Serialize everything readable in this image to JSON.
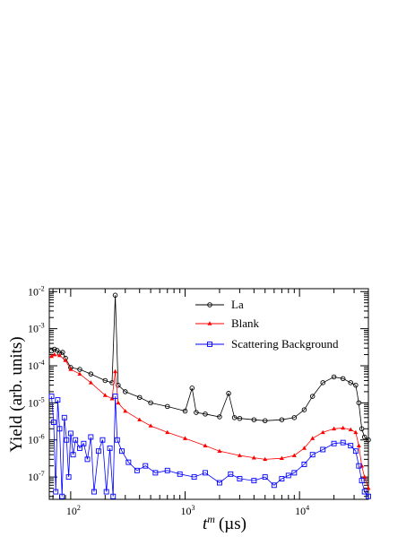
{
  "chart_data": {
    "type": "scatter",
    "xscale": "log",
    "yscale": "log",
    "xlim": [
      65,
      40000
    ],
    "ylim": [
      2.5e-08,
      0.012
    ],
    "xlabel_base": "t",
    "xlabel_sup": "m",
    "xlabel_unit": "(µs)",
    "ylabel": "Yield (arb. units)",
    "legend_position": "top-right",
    "grid": false,
    "x_ticks": [
      {
        "value": 100,
        "base": "10",
        "exp": "2"
      },
      {
        "value": 1000,
        "base": "10",
        "exp": "3"
      },
      {
        "value": 10000,
        "base": "10",
        "exp": "4"
      }
    ],
    "y_ticks": [
      {
        "value": 1e-07,
        "base": "10",
        "exp": "-7"
      },
      {
        "value": 1e-06,
        "base": "10",
        "exp": "-6"
      },
      {
        "value": 1e-05,
        "base": "10",
        "exp": "-5"
      },
      {
        "value": 0.0001,
        "base": "10",
        "exp": "-4"
      },
      {
        "value": 0.001,
        "base": "10",
        "exp": "-3"
      },
      {
        "value": 0.01,
        "base": "10",
        "exp": "-2"
      }
    ],
    "series": [
      {
        "name": "La",
        "color": "#000000",
        "marker": "open-circle",
        "x": [
          68,
          72,
          76,
          80,
          85,
          90,
          100,
          120,
          150,
          200,
          230,
          245,
          260,
          300,
          400,
          500,
          700,
          1000,
          1150,
          1250,
          1500,
          2000,
          2400,
          2700,
          3000,
          4000,
          5000,
          7000,
          9000,
          11000,
          13000,
          16000,
          20000,
          24000,
          28000,
          31000,
          33000,
          35000,
          37000,
          40000
        ],
        "y": [
          0.00025,
          0.00028,
          0.00026,
          0.00022,
          0.00023,
          0.00016,
          9e-05,
          8e-05,
          6e-05,
          4e-05,
          3.5e-05,
          0.008,
          3e-05,
          2e-05,
          1.4e-05,
          1e-05,
          8e-06,
          6e-06,
          2.5e-05,
          5.5e-06,
          5e-06,
          4.2e-06,
          1.8e-05,
          4e-06,
          3.8e-06,
          3.5e-06,
          3.3e-06,
          3.5e-06,
          4e-06,
          6.5e-06,
          1.5e-05,
          3.5e-05,
          5e-05,
          4.5e-05,
          3.5e-05,
          3e-05,
          1e-05,
          2e-06,
          1.2e-06,
          1e-06
        ]
      },
      {
        "name": "Blank",
        "color": "#ff0000",
        "marker": "filled-triangle",
        "x": [
          68,
          72,
          80,
          90,
          100,
          120,
          150,
          200,
          230,
          245,
          260,
          300,
          400,
          500,
          700,
          1000,
          1500,
          2000,
          3000,
          4000,
          5000,
          7000,
          9000,
          11000,
          13000,
          16000,
          20000,
          24000,
          28000,
          31000,
          33000,
          35000,
          37000,
          40000
        ],
        "y": [
          0.00018,
          0.0002,
          0.00019,
          0.00014,
          8e-05,
          6e-05,
          3.5e-05,
          1.6e-05,
          1.3e-05,
          7e-05,
          1e-05,
          6e-06,
          3.5e-06,
          2.4e-06,
          1.6e-06,
          1.1e-06,
          7e-07,
          5e-07,
          3.8e-07,
          3.3e-07,
          3e-07,
          3.2e-07,
          3.8e-07,
          6e-07,
          1.1e-06,
          1.6e-06,
          2e-06,
          2.1e-06,
          1.9e-06,
          1.6e-06,
          7e-07,
          2e-07,
          1e-07,
          5e-08
        ]
      },
      {
        "name": "Scattering Background",
        "color": "#0000ff",
        "marker": "open-square",
        "x": [
          68,
          71,
          74,
          77,
          80,
          84,
          88,
          92,
          96,
          100,
          105,
          110,
          120,
          130,
          140,
          150,
          160,
          175,
          190,
          205,
          220,
          235,
          245,
          255,
          280,
          320,
          380,
          450,
          550,
          700,
          900,
          1200,
          1500,
          2000,
          2500,
          3000,
          4000,
          5000,
          6000,
          7000,
          8000,
          9000,
          11000,
          13000,
          16000,
          20000,
          24000,
          28000,
          31000,
          33000,
          35000,
          37000,
          40000
        ],
        "y": [
          1.5e-05,
          3e-06,
          4e-08,
          1.2e-05,
          2e-06,
          3e-08,
          4e-06,
          1e-06,
          1e-07,
          1.5e-06,
          4e-07,
          1e-06,
          6e-07,
          8e-07,
          3e-07,
          1.2e-06,
          4e-08,
          5e-07,
          1e-06,
          4e-08,
          6e-07,
          3e-08,
          1.5e-05,
          1e-06,
          5e-07,
          2.5e-07,
          1.5e-07,
          2e-07,
          1.3e-07,
          1.5e-07,
          1.2e-07,
          1e-07,
          1.3e-07,
          7e-08,
          1.2e-07,
          9e-08,
          8e-08,
          1e-07,
          6e-08,
          9e-08,
          1.1e-07,
          1.3e-07,
          2.2e-07,
          4e-07,
          5.5e-07,
          8e-07,
          8.5e-07,
          7e-07,
          5e-07,
          2e-07,
          8e-08,
          4e-08,
          3e-08
        ]
      }
    ]
  }
}
